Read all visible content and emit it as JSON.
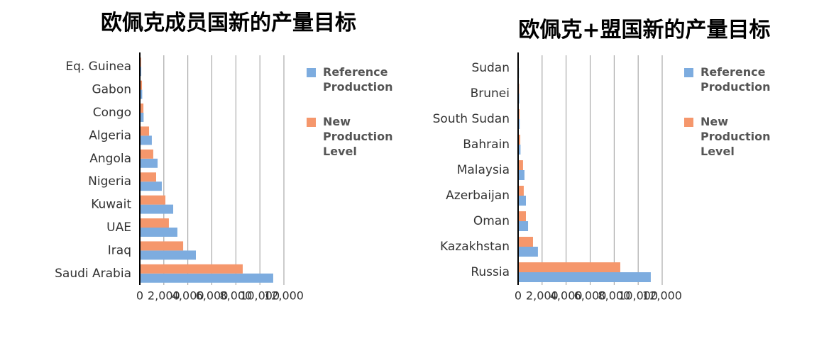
{
  "chart_data": [
    {
      "type": "bar",
      "orientation": "horizontal",
      "title": "欧佩克成员国新的产量目标",
      "categories": [
        "Eq. Guinea",
        "Gabon",
        "Congo",
        "Algeria",
        "Angola",
        "Nigeria",
        "Kuwait",
        "UAE",
        "Iraq",
        "Saudi Arabia"
      ],
      "series": [
        {
          "name": "Reference Production",
          "color": "#7dacdf",
          "values": [
            120,
            200,
            315,
            1000,
            1480,
            1830,
            2780,
            3130,
            4670,
            11110
          ]
        },
        {
          "name": "New Production Level",
          "color": "#f5976c",
          "values": [
            110,
            180,
            300,
            770,
            1120,
            1360,
            2130,
            2420,
            3610,
            8570
          ]
        }
      ],
      "xlim": [
        0,
        12000
      ],
      "xticks": [
        0,
        {
          "value": 2000,
          "label": "2,000"
        },
        {
          "value": 4000,
          "label": "4,000"
        },
        {
          "value": 6000,
          "label": "6,000"
        },
        {
          "value": 8000,
          "label": "8,000"
        },
        {
          "value": 10000,
          "label": "10,000"
        },
        {
          "value": 12000,
          "label": "12,000"
        }
      ],
      "grid": true,
      "legend": "right"
    },
    {
      "type": "bar",
      "orientation": "horizontal",
      "title": "欧佩克+盟国新的产量目标",
      "categories": [
        "Sudan",
        "Brunei",
        "South Sudan",
        "Bahrain",
        "Malaysia",
        "Azerbaijan",
        "Oman",
        "Kazakhstan",
        "Russia"
      ],
      "series": [
        {
          "name": "Reference Production",
          "color": "#7dacdf",
          "values": [
            70,
            100,
            130,
            200,
            530,
            650,
            830,
            1650,
            11050
          ]
        },
        {
          "name": "New Production Level",
          "color": "#f5976c",
          "values": [
            60,
            90,
            120,
            180,
            410,
            470,
            650,
            1240,
            8510
          ]
        }
      ],
      "xlim": [
        0,
        12000
      ],
      "xticks": [
        0,
        {
          "value": 2000,
          "label": "2,000"
        },
        {
          "value": 4000,
          "label": "4,000"
        },
        {
          "value": 6000,
          "label": "6,000"
        },
        {
          "value": 8000,
          "label": "8,000"
        },
        {
          "value": 10000,
          "label": "10,000"
        },
        {
          "value": 12000,
          "label": "12,000"
        }
      ],
      "grid": true,
      "legend": "right"
    }
  ]
}
